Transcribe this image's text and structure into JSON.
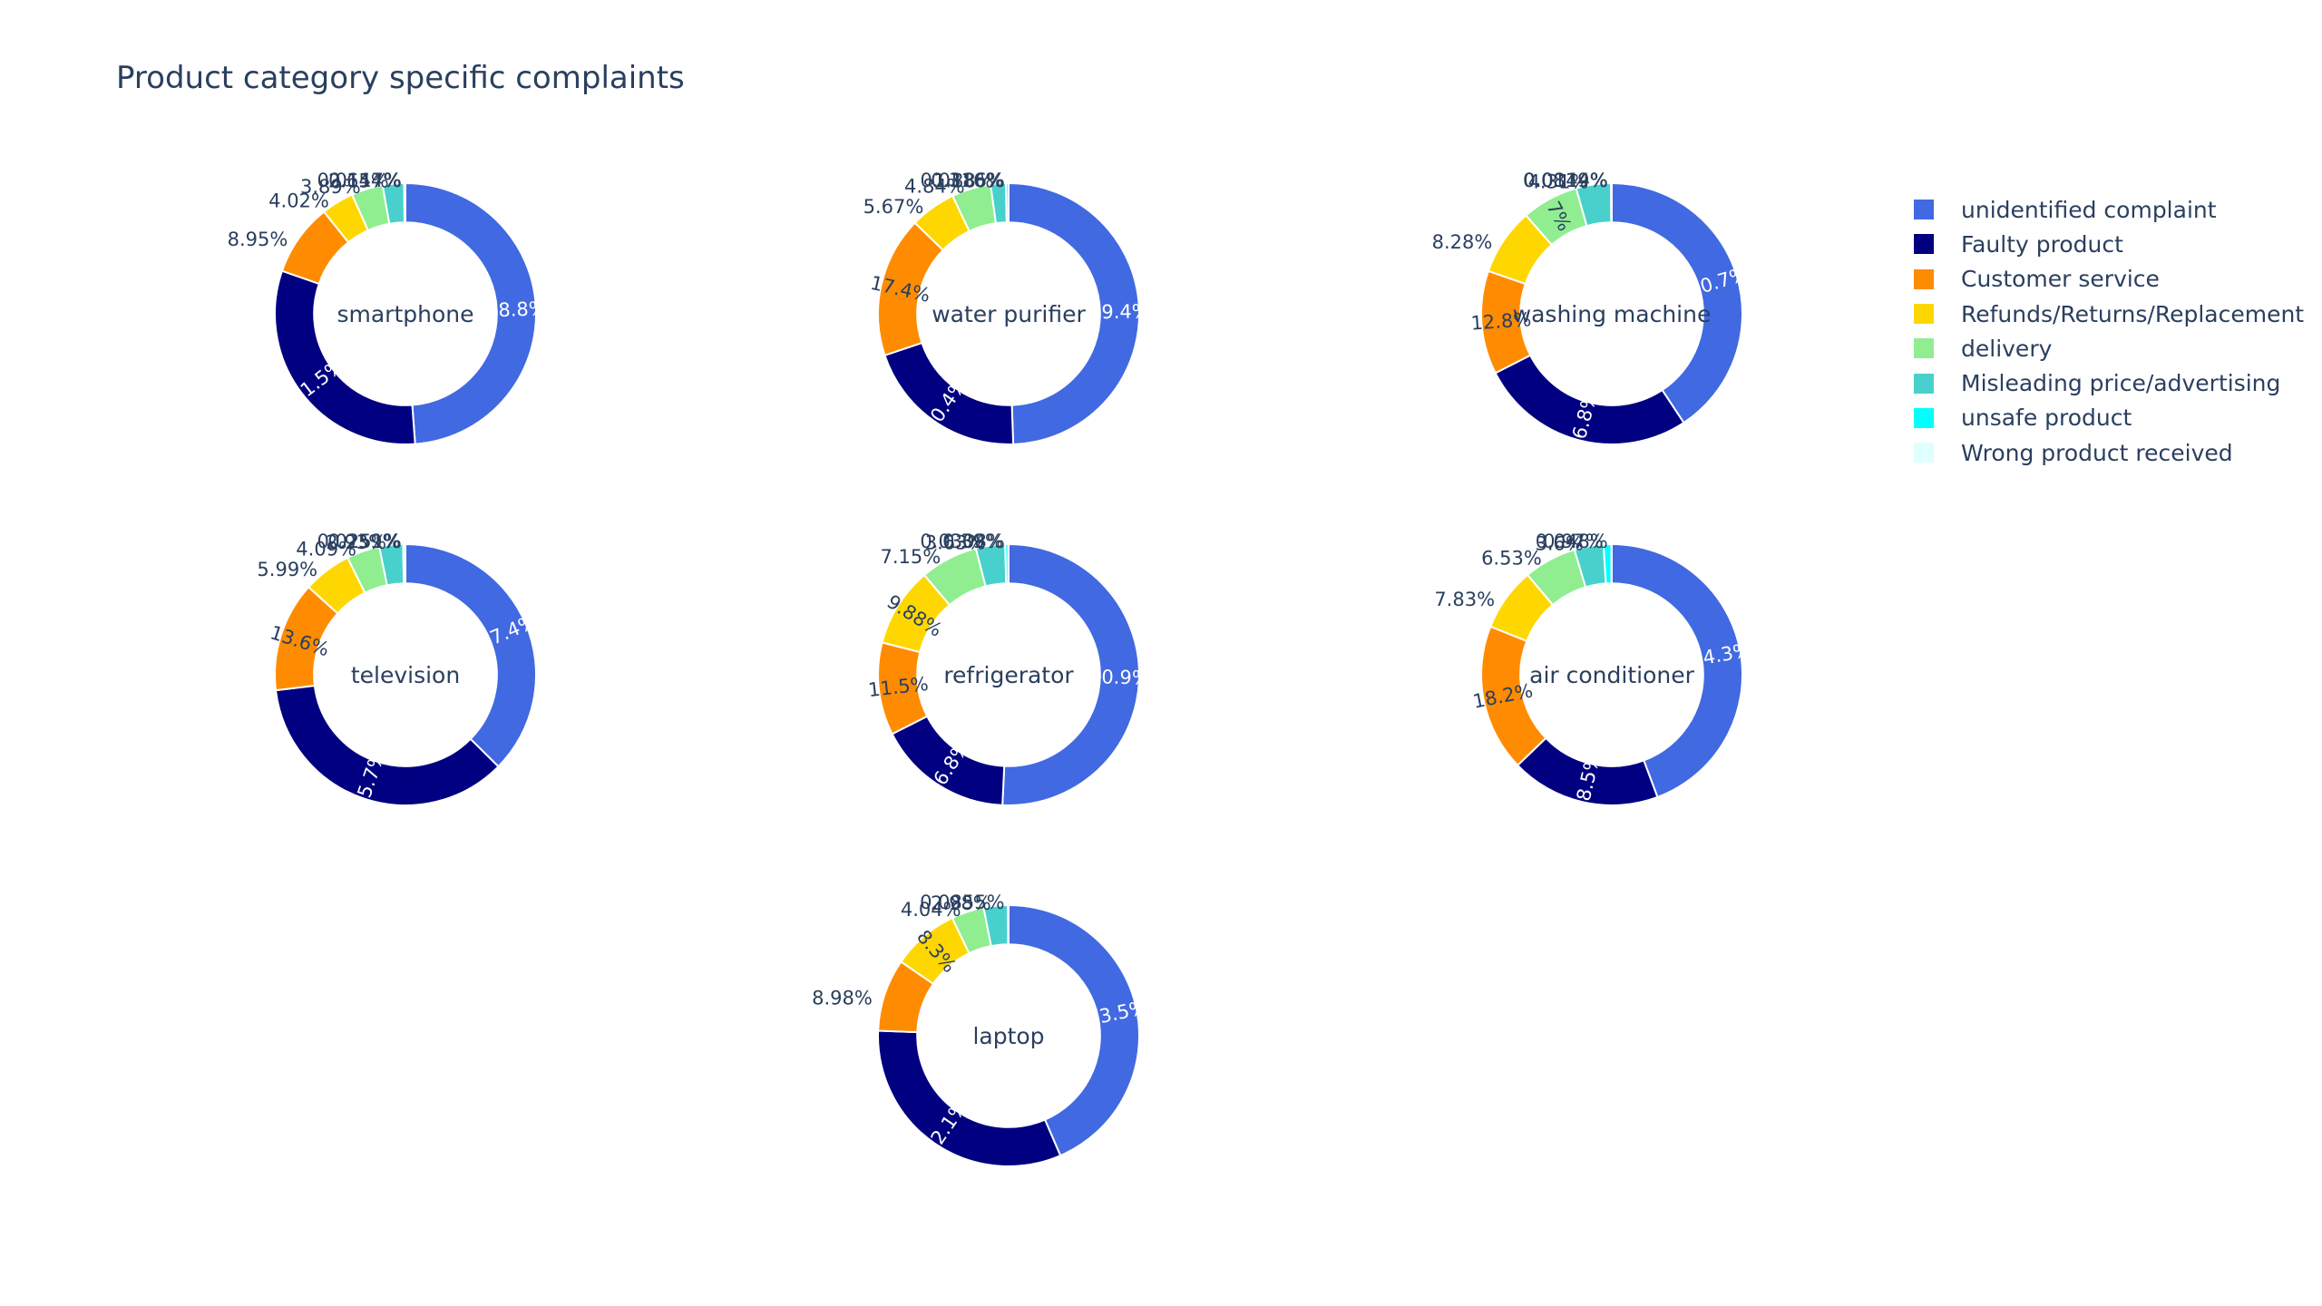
{
  "chart_data": {
    "type": "pie",
    "title": "Product category specific complaints",
    "categories": [
      "unidentified complaint",
      "Faulty product",
      "Customer service",
      "Refunds/Returns/Replacement",
      "delivery",
      "Misleading price/advertising",
      "unsafe product",
      "Wrong product received"
    ],
    "colors": [
      "#4169e1",
      "#000080",
      "#ff8c00",
      "#ffd700",
      "#90ee90",
      "#48d1cc",
      "#00ffff",
      "#e0ffff"
    ],
    "hole": 0.7,
    "legend_position": "right",
    "charts": [
      {
        "name": "smartphone",
        "values": [
          48.8,
          31.5,
          8.95,
          4.02,
          3.89,
          2.65,
          0.144,
          0.0117
        ],
        "labels": [
          "48.8%",
          "31.5%",
          "8.95%",
          "4.02%",
          "3.89%",
          "2.65%",
          "0.144%",
          "0.0117%"
        ]
      },
      {
        "name": "water purifier",
        "values": [
          49.4,
          20.4,
          17.4,
          5.67,
          4.84,
          1.88,
          0.316,
          0.0186
        ],
        "labels": [
          "49.4%",
          "20.4%",
          "17.4%",
          "5.67%",
          "4.84%",
          "1.88%",
          "0.316%",
          "0.0186%"
        ]
      },
      {
        "name": "washing machine",
        "values": [
          40.7,
          26.8,
          12.8,
          8.28,
          7.0,
          4.31,
          0.0819,
          0.0144
        ],
        "labels": [
          "40.7%",
          "26.8%",
          "12.8%",
          "8.28%",
          "7%",
          "4.31%",
          "0.0819%",
          "0.0144%"
        ]
      },
      {
        "name": "television",
        "values": [
          37.4,
          35.7,
          13.6,
          5.99,
          4.09,
          2.93,
          0.259,
          0.0251
        ],
        "labels": [
          "37.4%",
          "35.7%",
          "13.6%",
          "5.99%",
          "4.09%",
          "2.93%",
          "0.259%",
          "0.0251%"
        ]
      },
      {
        "name": "refrigerator",
        "values": [
          50.9,
          16.8,
          11.5,
          9.88,
          7.15,
          3.63,
          0.39,
          0.0308
        ],
        "labels": [
          "50.9%",
          "16.8%",
          "11.5%",
          "9.88%",
          "7.15%",
          "3.63%",
          "0.39%",
          "0.0308%"
        ]
      },
      {
        "name": "air conditioner",
        "values": [
          44.3,
          18.5,
          18.2,
          7.83,
          6.53,
          3.6,
          0.97,
          0.048
        ],
        "labels": [
          "44.3%",
          "18.5%",
          "18.2%",
          "7.83%",
          "6.53%",
          "3.6%",
          "0.97%",
          "0.048%"
        ]
      },
      {
        "name": "laptop",
        "values": [
          43.5,
          32.1,
          8.98,
          8.3,
          4.04,
          2.98,
          0.0855,
          0.0
        ],
        "labels": [
          "43.5%",
          "32.1%",
          "8.98%",
          "8.3%",
          "4.04%",
          "2.98%",
          "0.0855%",
          ""
        ]
      }
    ]
  }
}
